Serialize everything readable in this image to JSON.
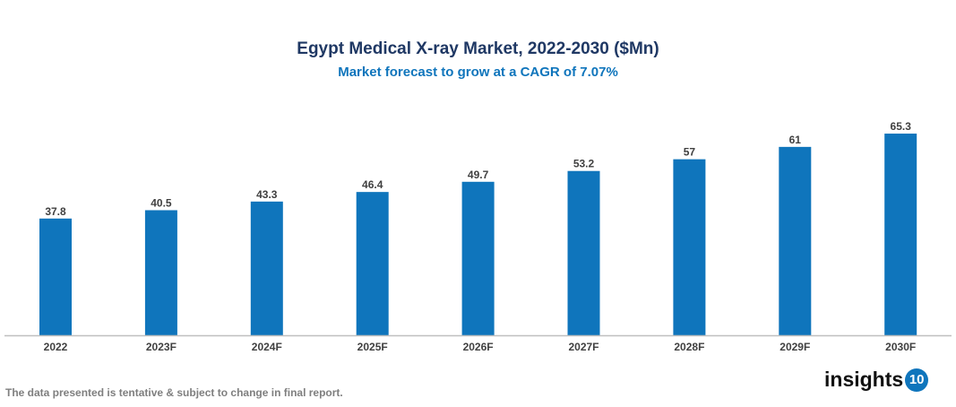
{
  "chart_data": {
    "type": "bar",
    "title": "Egypt Medical X-ray Market, 2022-2030 ($Mn)",
    "subtitle": "Market forecast to grow at a CAGR of 7.07%",
    "categories": [
      "2022",
      "2023F",
      "2024F",
      "2025F",
      "2026F",
      "2027F",
      "2028F",
      "2029F",
      "2030F"
    ],
    "values": [
      37.8,
      40.5,
      43.3,
      46.4,
      49.7,
      53.2,
      57,
      61,
      65.3
    ],
    "value_labels": [
      "37.8",
      "40.5",
      "43.3",
      "46.4",
      "49.7",
      "53.2",
      "57",
      "61",
      "65.3"
    ],
    "xlabel": "",
    "ylabel": "",
    "ylim": [
      0,
      70
    ],
    "grid": false,
    "bar_color": "#0f75bc"
  },
  "footer": {
    "disclaimer": "The data presented is tentative & subject to change in final report."
  },
  "logo": {
    "text": "insights",
    "badge": "10",
    "color": "#0f75bc"
  }
}
